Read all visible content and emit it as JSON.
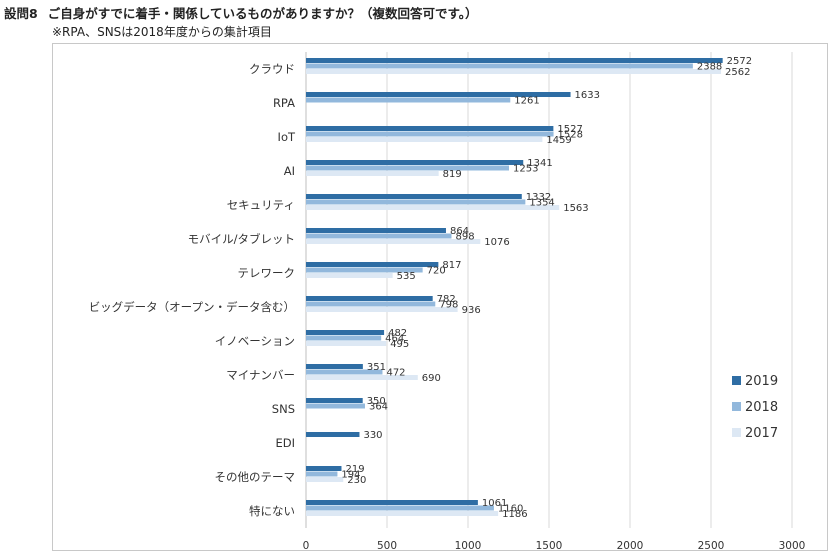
{
  "header": {
    "question_no": "設問8",
    "question": "ご自身がすでに着手・関係しているものがありますか？（複数回答可です。）",
    "note": "※RPA、SNSは2018年度からの集計項目"
  },
  "colors": {
    "2019": "#2e6da4",
    "2018": "#92b8dc",
    "2017": "#dde8f4",
    "grid": "#d9d9d9",
    "axis": "#bfbfbf"
  },
  "chart_data": {
    "type": "bar",
    "orientation": "horizontal",
    "categories": [
      "クラウド",
      "RPA",
      "IoT",
      "AI",
      "セキュリティ",
      "モバイル/タブレット",
      "テレワーク",
      "ビッグデータ（オープン・データ含む）",
      "イノベーション",
      "マイナンバー",
      "SNS",
      "EDI",
      "その他のテーマ",
      "特にない"
    ],
    "series": [
      {
        "name": "2019",
        "values": [
          2572,
          1633,
          1527,
          1341,
          1332,
          864,
          817,
          782,
          482,
          351,
          350,
          330,
          219,
          1061
        ]
      },
      {
        "name": "2018",
        "values": [
          2388,
          1261,
          1528,
          1253,
          1354,
          898,
          720,
          798,
          464,
          472,
          364,
          null,
          194,
          1160
        ]
      },
      {
        "name": "2017",
        "values": [
          2562,
          null,
          1459,
          819,
          1563,
          1076,
          535,
          936,
          495,
          690,
          null,
          null,
          230,
          1186
        ]
      }
    ],
    "xlim": [
      0,
      3000
    ],
    "xticks": [
      0,
      500,
      1000,
      1500,
      2000,
      2500,
      3000
    ],
    "grid": true,
    "legend_position": "right",
    "legend_order": [
      "2019",
      "2018",
      "2017"
    ]
  }
}
